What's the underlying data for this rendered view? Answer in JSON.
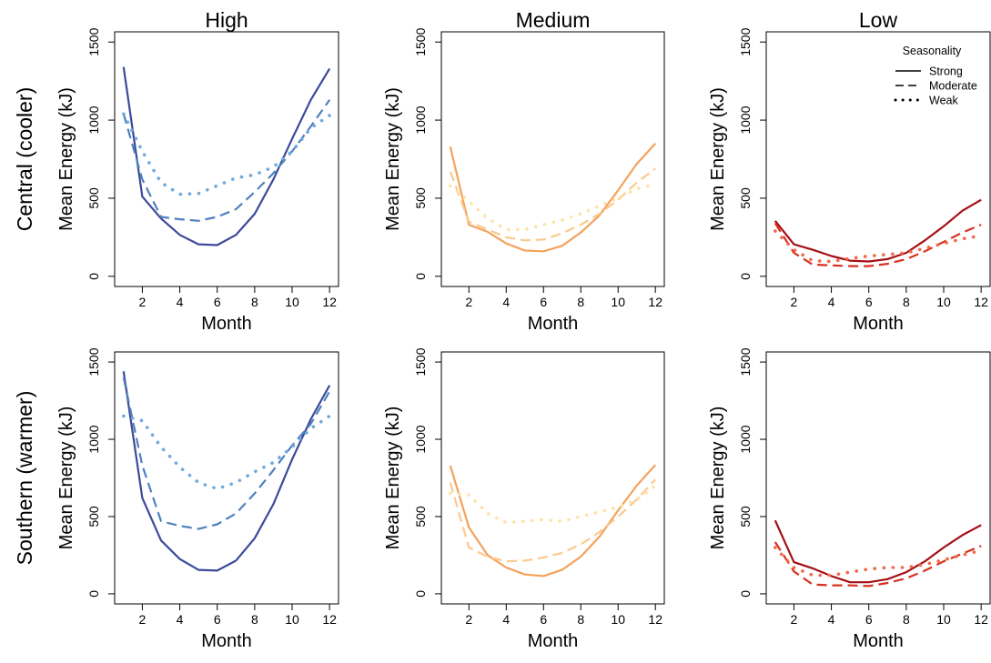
{
  "columns": [
    "High",
    "Medium",
    "Low"
  ],
  "rows": [
    "Central (cooler)",
    "Southern (warmer)"
  ],
  "legend": {
    "title": "Seasonality",
    "items": [
      {
        "label": "Strong",
        "dash": "solid"
      },
      {
        "label": "Moderate",
        "dash": "dashed"
      },
      {
        "label": "Weak",
        "dash": "dotted"
      }
    ]
  },
  "colors": {
    "High": {
      "Strong": "#3b4a9a",
      "Moderate": "#4f81bd",
      "Weak": "#6fa8dc"
    },
    "Medium": {
      "Strong": "#f5a25d",
      "Moderate": "#fbc98e",
      "Weak": "#fde3a7"
    },
    "Low": {
      "Strong": "#a50f15",
      "Moderate": "#d7301f",
      "Weak": "#f16947"
    }
  },
  "chart_data": [
    {
      "type": "line",
      "column": "High",
      "row": "Central (cooler)",
      "xlabel": "Month",
      "ylabel": "Mean Energy (kJ)",
      "xlim": [
        1,
        12
      ],
      "ylim": [
        0,
        1500
      ],
      "xticks": [
        2,
        4,
        6,
        8,
        10,
        12
      ],
      "yticks": [
        0,
        500,
        1000,
        1500
      ],
      "x": [
        1,
        2,
        3,
        4,
        5,
        6,
        7,
        8,
        9,
        10,
        11,
        12
      ],
      "series": [
        {
          "name": "Strong",
          "values": [
            1340,
            510,
            370,
            265,
            205,
            200,
            265,
            400,
            620,
            880,
            1130,
            1330
          ]
        },
        {
          "name": "Moderate",
          "values": [
            1040,
            620,
            380,
            365,
            355,
            380,
            430,
            540,
            660,
            800,
            960,
            1130
          ]
        },
        {
          "name": "Weak",
          "values": [
            1040,
            800,
            600,
            525,
            530,
            580,
            630,
            650,
            700,
            800,
            950,
            1030
          ]
        }
      ]
    },
    {
      "type": "line",
      "column": "Medium",
      "row": "Central (cooler)",
      "xlabel": "Month",
      "ylabel": "Mean Energy (kJ)",
      "xlim": [
        1,
        12
      ],
      "ylim": [
        0,
        1500
      ],
      "xticks": [
        2,
        4,
        6,
        8,
        10,
        12
      ],
      "yticks": [
        0,
        500,
        1000,
        1500
      ],
      "x": [
        1,
        2,
        3,
        4,
        5,
        6,
        7,
        8,
        9,
        10,
        11,
        12
      ],
      "series": [
        {
          "name": "Strong",
          "values": [
            830,
            330,
            285,
            210,
            165,
            160,
            195,
            280,
            390,
            550,
            720,
            850
          ]
        },
        {
          "name": "Moderate",
          "values": [
            670,
            350,
            300,
            250,
            230,
            235,
            275,
            330,
            400,
            490,
            600,
            690
          ]
        },
        {
          "name": "Weak",
          "values": [
            580,
            480,
            370,
            300,
            300,
            330,
            360,
            400,
            450,
            500,
            560,
            590
          ]
        }
      ]
    },
    {
      "type": "line",
      "column": "Low",
      "row": "Central (cooler)",
      "xlabel": "Month",
      "ylabel": "Mean Energy (kJ)",
      "xlim": [
        1,
        12
      ],
      "ylim": [
        0,
        1500
      ],
      "xticks": [
        2,
        4,
        6,
        8,
        10,
        12
      ],
      "yticks": [
        0,
        500,
        1000,
        1500
      ],
      "x": [
        1,
        2,
        3,
        4,
        5,
        6,
        7,
        8,
        9,
        10,
        11,
        12
      ],
      "series": [
        {
          "name": "Strong",
          "values": [
            355,
            205,
            170,
            130,
            100,
            95,
            110,
            150,
            230,
            320,
            420,
            490
          ]
        },
        {
          "name": "Moderate",
          "values": [
            340,
            150,
            75,
            70,
            65,
            65,
            80,
            110,
            160,
            220,
            280,
            330
          ]
        },
        {
          "name": "Weak",
          "values": [
            290,
            170,
            100,
            95,
            115,
            130,
            140,
            150,
            180,
            210,
            240,
            260
          ]
        }
      ]
    },
    {
      "type": "line",
      "column": "High",
      "row": "Southern (warmer)",
      "xlabel": "Month",
      "ylabel": "Mean Energy (kJ)",
      "xlim": [
        1,
        12
      ],
      "ylim": [
        0,
        1500
      ],
      "xticks": [
        2,
        4,
        6,
        8,
        10,
        12
      ],
      "yticks": [
        0,
        500,
        1000,
        1500
      ],
      "x": [
        1,
        2,
        3,
        4,
        5,
        6,
        7,
        8,
        9,
        10,
        11,
        12
      ],
      "series": [
        {
          "name": "Strong",
          "values": [
            1440,
            620,
            345,
            225,
            155,
            150,
            215,
            360,
            580,
            870,
            1130,
            1350
          ]
        },
        {
          "name": "Moderate",
          "values": [
            1400,
            830,
            470,
            440,
            420,
            450,
            520,
            650,
            800,
            960,
            1100,
            1310
          ]
        },
        {
          "name": "Weak",
          "values": [
            1150,
            1120,
            950,
            820,
            720,
            680,
            720,
            790,
            850,
            950,
            1070,
            1150
          ]
        }
      ]
    },
    {
      "type": "line",
      "column": "Medium",
      "row": "Southern (warmer)",
      "xlabel": "Month",
      "ylabel": "Mean Energy (kJ)",
      "xlim": [
        1,
        12
      ],
      "ylim": [
        0,
        1500
      ],
      "xticks": [
        2,
        4,
        6,
        8,
        10,
        12
      ],
      "yticks": [
        0,
        500,
        1000,
        1500
      ],
      "x": [
        1,
        2,
        3,
        4,
        5,
        6,
        7,
        8,
        9,
        10,
        11,
        12
      ],
      "series": [
        {
          "name": "Strong",
          "values": [
            830,
            430,
            250,
            170,
            125,
            115,
            155,
            240,
            370,
            540,
            700,
            835
          ]
        },
        {
          "name": "Moderate",
          "values": [
            720,
            300,
            240,
            210,
            215,
            235,
            265,
            320,
            400,
            500,
            610,
            740
          ]
        },
        {
          "name": "Weak",
          "values": [
            650,
            640,
            520,
            460,
            470,
            480,
            470,
            500,
            530,
            560,
            610,
            700
          ]
        }
      ]
    },
    {
      "type": "line",
      "column": "Low",
      "row": "Southern (warmer)",
      "xlabel": "Month",
      "ylabel": "Mean Energy (kJ)",
      "xlim": [
        1,
        12
      ],
      "ylim": [
        0,
        1500
      ],
      "xticks": [
        2,
        4,
        6,
        8,
        10,
        12
      ],
      "yticks": [
        0,
        500,
        1000,
        1500
      ],
      "x": [
        1,
        2,
        3,
        4,
        5,
        6,
        7,
        8,
        9,
        10,
        11,
        12
      ],
      "series": [
        {
          "name": "Strong",
          "values": [
            475,
            205,
            165,
            115,
            75,
            75,
            95,
            140,
            210,
            300,
            380,
            445
          ]
        },
        {
          "name": "Moderate",
          "values": [
            335,
            145,
            60,
            55,
            55,
            50,
            70,
            100,
            150,
            210,
            260,
            310
          ]
        },
        {
          "name": "Weak",
          "values": [
            300,
            170,
            120,
            120,
            140,
            160,
            170,
            170,
            190,
            220,
            250,
            280
          ]
        }
      ]
    }
  ]
}
